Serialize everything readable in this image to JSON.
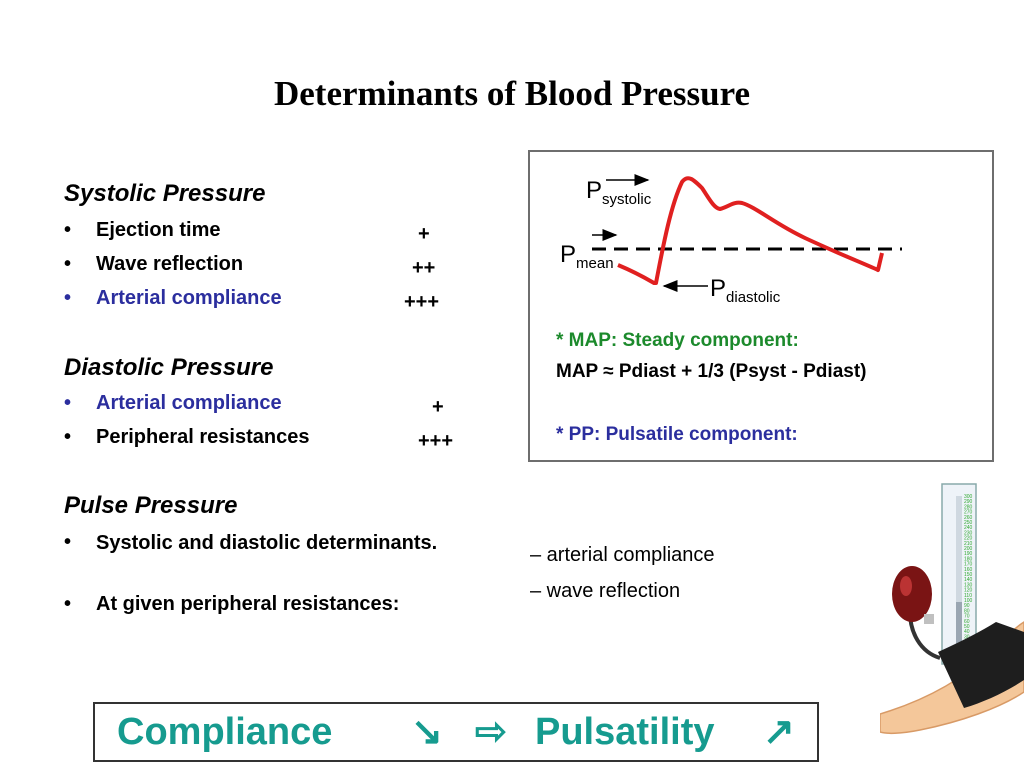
{
  "title": "Determinants of Blood Pressure",
  "systolic": {
    "heading": "Systolic Pressure",
    "items": [
      {
        "label": "Ejection time",
        "rating": "+"
      },
      {
        "label": "Wave reflection",
        "rating": "++"
      },
      {
        "label": "Arterial compliance",
        "rating": "+++"
      }
    ]
  },
  "diastolic": {
    "heading": "Diastolic Pressure",
    "items": [
      {
        "label": "Arterial compliance",
        "rating": "+"
      },
      {
        "label": "Peripheral resistances",
        "rating": "+++"
      }
    ]
  },
  "pulse": {
    "heading": "Pulse Pressure",
    "items": [
      {
        "label": "Systolic and diastolic determinants."
      },
      {
        "label": "At given peripheral resistances:"
      }
    ],
    "sub_items": [
      "– arterial compliance",
      "– wave reflection"
    ]
  },
  "bullet": "•",
  "diagram": {
    "p_systolic": "P",
    "p_systolic_sub": "systolic",
    "p_mean": "P",
    "p_mean_sub": "mean",
    "p_diastolic": "P",
    "p_diastolic_sub": "diastolic",
    "map_line1": "* MAP: Steady component:",
    "map_line2": "MAP ≈ Pdiast + 1/3 (Psyst - Pdiast)",
    "pp_line": "* PP: Pulsatile component:"
  },
  "bottom": {
    "compliance": "Compliance",
    "arrow_down": "↘",
    "implies": "⇨",
    "pulsatility": "Pulsatility",
    "arrow_up": "↗"
  },
  "colors": {
    "blue_text": "#2b2e9e",
    "green_text": "#1c8a2c",
    "teal_text": "#169b8f",
    "waveform": "#e02020"
  },
  "image": {
    "description_icon": "sphygmomanometer-icon",
    "gauge_ticks": [
      "300",
      "290",
      "280",
      "270",
      "260",
      "250",
      "240",
      "230",
      "220",
      "210",
      "200",
      "190",
      "180",
      "170",
      "160",
      "150",
      "140",
      "130",
      "120",
      "110",
      "100",
      "90",
      "80",
      "70",
      "60",
      "50",
      "40",
      "30",
      "20",
      "10",
      "0"
    ]
  }
}
